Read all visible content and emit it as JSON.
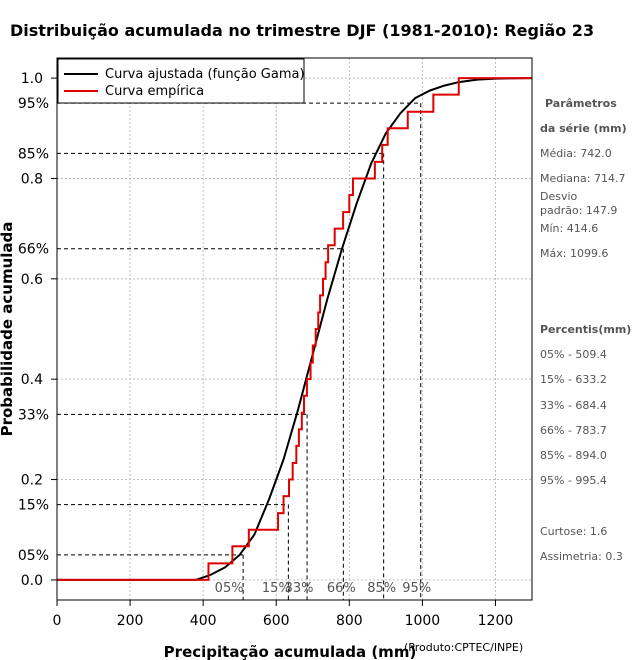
{
  "chart_data": {
    "type": "line",
    "title": "Distribuição acumulada no trimestre DJF (1981-2010): Região 23",
    "xlabel": "Precipitação acumulada (mm)",
    "ylabel": "Probabilidade acumulada",
    "xlim": [
      0,
      1300
    ],
    "ylim": [
      -0.04,
      1.04
    ],
    "x_ticks": [
      "0",
      "200",
      "400",
      "600",
      "800",
      "1000",
      "1200"
    ],
    "y_ticks": [
      {
        "value": 0.0,
        "label": "0.0"
      },
      {
        "value": 0.2,
        "label": "0.2"
      },
      {
        "value": 0.4,
        "label": "0.4"
      },
      {
        "value": 0.6,
        "label": "0.6"
      },
      {
        "value": 0.8,
        "label": "0.8"
      },
      {
        "value": 1.0,
        "label": "1.0"
      }
    ],
    "grid": true,
    "legend": {
      "position": "top-left",
      "items": [
        {
          "label": "Curva ajustada (função Gama)",
          "color": "#000000"
        },
        {
          "label": "Curva empírica",
          "color": "#e00000"
        }
      ]
    },
    "fitted_color": "#000000",
    "empirical_color": "#e00000",
    "fitted_curve": {
      "name": "Curva ajustada (função Gama)",
      "x": [
        0,
        380,
        420,
        460,
        500,
        540,
        580,
        620,
        660,
        700,
        740,
        780,
        820,
        860,
        900,
        940,
        980,
        1020,
        1060,
        1100,
        1150,
        1200,
        1300
      ],
      "y": [
        0,
        0.0,
        0.01,
        0.025,
        0.05,
        0.09,
        0.16,
        0.24,
        0.34,
        0.45,
        0.56,
        0.66,
        0.75,
        0.83,
        0.89,
        0.93,
        0.96,
        0.975,
        0.985,
        0.992,
        0.997,
        0.999,
        1.0
      ]
    },
    "empirical_curve": {
      "name": "Curva empírica",
      "x": [
        0,
        414.6,
        480,
        525,
        605,
        620,
        635,
        645,
        655,
        662,
        670,
        676,
        684,
        694,
        700,
        708,
        715,
        720,
        728,
        735,
        742,
        760,
        783,
        800,
        810,
        870,
        890,
        905,
        960,
        1030,
        1099.6,
        1300
      ],
      "y": [
        0.0,
        0.033,
        0.067,
        0.1,
        0.133,
        0.167,
        0.2,
        0.233,
        0.267,
        0.3,
        0.333,
        0.367,
        0.4,
        0.433,
        0.467,
        0.5,
        0.533,
        0.567,
        0.6,
        0.633,
        0.667,
        0.7,
        0.733,
        0.767,
        0.8,
        0.833,
        0.867,
        0.9,
        0.933,
        0.967,
        1.0,
        1.0
      ]
    },
    "percentile_markers": [
      {
        "label": "05%",
        "prob": 0.05,
        "value": 509.4
      },
      {
        "label": "15%",
        "prob": 0.15,
        "value": 633.2
      },
      {
        "label": "33%",
        "prob": 0.33,
        "value": 684.4
      },
      {
        "label": "66%",
        "prob": 0.66,
        "value": 783.7
      },
      {
        "label": "85%",
        "prob": 0.85,
        "value": 894.0
      },
      {
        "label": "95%",
        "prob": 0.95,
        "value": 995.4
      }
    ]
  },
  "sidebar": {
    "params_heading_1": "Parâmetros",
    "params_heading_2": "da série (mm)",
    "media": "Média: 742.0",
    "mediana": "Mediana: 714.7",
    "desvio_1": "Desvio",
    "desvio_2": "padrão: 147.9",
    "min": "Mín: 414.6",
    "max": "Máx: 1099.6",
    "percentis_heading": "Percentis(mm)",
    "p05": "05% - 509.4",
    "p15": "15% - 633.2",
    "p33": "33% - 684.4",
    "p66": "66% - 783.7",
    "p85": "85% - 894.0",
    "p95": "95% - 995.4",
    "curtose": "Curtose: 1.6",
    "assimetria": "Assimetria: 0.3"
  },
  "credit": "(Produto:CPTEC/INPE)"
}
